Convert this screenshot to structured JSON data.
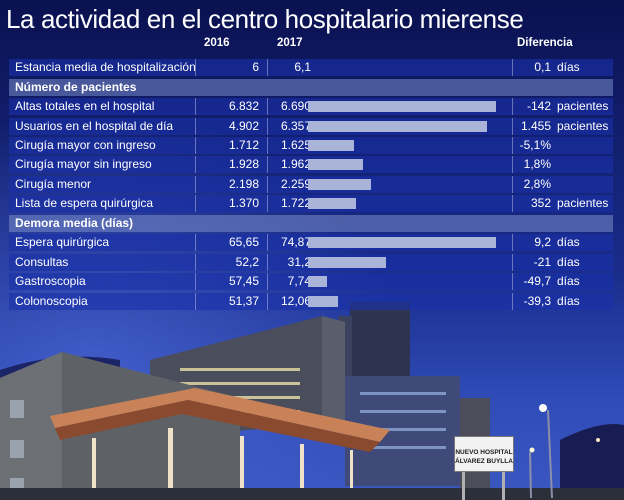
{
  "title": "La actividad en el centro hospitalario mierense",
  "columns": {
    "y2016": "2016",
    "y2017": "2017",
    "diff": "Diferencia"
  },
  "sections": {
    "patients": "Número de pacientes",
    "delay": "Demora media (días)"
  },
  "sign": {
    "line1": "NUEVO HOSPITAL",
    "line2": "ÁLVAREZ BUYLLA"
  },
  "chart_data": {
    "type": "table",
    "title": "La actividad en el centro hospitalario mierense",
    "columns": [
      "2016",
      "2017",
      "Diferencia"
    ],
    "bars_column": "2017",
    "rows": [
      {
        "label": "Estancia media de hospitalización",
        "v2016": "6",
        "v2017": "6,1",
        "bar": null,
        "diff": "0,1",
        "unit": "días"
      },
      {
        "label": "Altas totales en el hospital",
        "v2016": "6.832",
        "v2017": "6.690",
        "bar": 6690,
        "diff": "-142",
        "unit": "pacientes"
      },
      {
        "label": "Usuarios en el hospital de día",
        "v2016": "4.902",
        "v2017": "6.357",
        "bar": 6357,
        "diff": "1.455",
        "unit": "pacientes"
      },
      {
        "label": "Cirugía mayor con ingreso",
        "v2016": "1.712",
        "v2017": "1.625",
        "bar": 1625,
        "diff": "-5,1%",
        "unit": ""
      },
      {
        "label": "Cirugía mayor sin ingreso",
        "v2016": "1.928",
        "v2017": "1.962",
        "bar": 1962,
        "diff": "1,8%",
        "unit": ""
      },
      {
        "label": "Cirugía menor",
        "v2016": "2.198",
        "v2017": "2.259",
        "bar": 2259,
        "diff": "2,8%",
        "unit": ""
      },
      {
        "label": "Lista de espera quirúrgica",
        "v2016": "1.370",
        "v2017": "1.722",
        "bar": 1722,
        "diff": "352",
        "unit": "pacientes"
      },
      {
        "label": "Espera quirúrgica",
        "v2016": "65,65",
        "v2017": "74,87",
        "bar": 74.87,
        "diff": "9,2",
        "unit": "días"
      },
      {
        "label": "Consultas",
        "v2016": "52,2",
        "v2017": "31,2",
        "bar": 31.2,
        "diff": "-21",
        "unit": "días"
      },
      {
        "label": "Gastroscopia",
        "v2016": "57,45",
        "v2017": "7,74",
        "bar": 7.74,
        "diff": "-49,7",
        "unit": "días"
      },
      {
        "label": "Colonoscopia",
        "v2016": "51,37",
        "v2017": "12,06",
        "bar": 12.06,
        "diff": "-39,3",
        "unit": "días"
      }
    ]
  }
}
